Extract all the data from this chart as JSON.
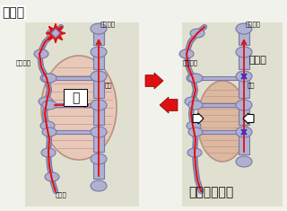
{
  "bg_color": "#f2f2ec",
  "panel_bg": "#e0e0d0",
  "vein_color": "#b0b0d0",
  "vein_edge": "#7878a8",
  "muscle_fill_left": "#e8c8b8",
  "muscle_fill_right": "#ddb8a0",
  "muscle_edge": "#b89080",
  "red_color": "#dd1111",
  "text_color": "#111111",
  "title_left": "静脈弁",
  "label_deep_l": "深部静脈",
  "label_deep_r": "深部静脈",
  "label_surface_l": "表在静脈",
  "label_surface_r": "表在静脈",
  "label_fascia_l": "筋膜",
  "label_fascia_r": "筋膜",
  "label_muscle": "筋",
  "label_perforator": "交通枝",
  "label_contraction": "筋収縮",
  "label_walk": "歩くと・・・"
}
